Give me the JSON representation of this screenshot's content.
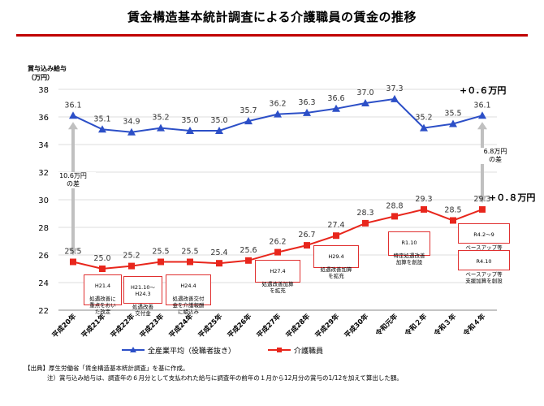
{
  "page": {
    "title": "賃金構造基本統計調査による介護職員の賃金の推移"
  },
  "chart_data": {
    "type": "line",
    "title": "賃金構造基本統計調査による介護職員の賃金の推移",
    "ylabel_line1": "賞与込み給与",
    "ylabel_line2": "（万円）",
    "xlabel": "",
    "ylim": [
      22,
      38
    ],
    "yticks": [
      22,
      24,
      26,
      28,
      30,
      32,
      34,
      36,
      38
    ],
    "grid": true,
    "categories": [
      "平成20年",
      "平成21年",
      "平成22年",
      "平成23年",
      "平成24年",
      "平成25年",
      "平成26年",
      "平成27年",
      "平成28年",
      "平成29年",
      "平成30年",
      "令和元年",
      "令和２年",
      "令和３年",
      "令和４年"
    ],
    "series": [
      {
        "name": "全産業平均（役職者抜き）",
        "color": "#2c4fc7",
        "marker": "triangle",
        "values": [
          36.1,
          35.1,
          34.9,
          35.2,
          35.0,
          35.0,
          35.7,
          36.2,
          36.3,
          36.6,
          37.0,
          37.3,
          35.2,
          35.5,
          36.1
        ],
        "labels": [
          "36.1",
          "35.1",
          "34.9",
          "35.2",
          "35.0",
          "35.0",
          "35.7",
          "36.2",
          "36.3",
          "36.6",
          "37.0",
          "37.3",
          "35.2",
          "35.5",
          "36.1"
        ]
      },
      {
        "name": "介護職員",
        "color": "#e8261c",
        "marker": "square",
        "values": [
          25.5,
          25.0,
          25.2,
          25.5,
          25.5,
          25.4,
          25.6,
          26.2,
          26.7,
          27.4,
          28.3,
          28.8,
          29.3,
          28.5,
          29.3
        ],
        "labels": [
          "25.5",
          "25.0",
          "25.2",
          "25.5",
          "25.5",
          "25.4",
          "25.6",
          "26.2",
          "26.7",
          "27.4",
          "28.3",
          "28.8",
          "29.3",
          "28.5",
          "29.3"
        ]
      }
    ],
    "gaps": [
      {
        "text_line1": "10.6万円",
        "text_line2": "の差"
      },
      {
        "text_line1": "6.8万円",
        "text_line2": "の差"
      }
    ],
    "deltas": {
      "all_industry": "+０.６万円",
      "care": "+０.８万円"
    },
    "annotations": [
      {
        "title": "H21.4",
        "body": "処遇改善に\n重点をおい\nた改定"
      },
      {
        "title": "H21.10～\nH24.3",
        "body": "処遇改善\n交付金"
      },
      {
        "title": "H24.4",
        "body": "処遇改善交付\n金を介護報酬\nに組込み"
      },
      {
        "title": "H27.4",
        "body": "処遇改善加算\nを拡充"
      },
      {
        "title": "H29.4",
        "body": "処遇改善加算\nを拡充"
      },
      {
        "title": "R1.10",
        "body": "特定処遇改善\n加算を創設"
      },
      {
        "title": "R4.2～9",
        "body": "ベースアップ等\n支援補助金"
      },
      {
        "title": "R4.10",
        "body": "ベースアップ等\n支援加算を創設"
      }
    ]
  },
  "notes": {
    "source": "【出典】厚生労働省「賃金構造基本統計調査」を基に作成。",
    "note": "注）賞与込み給与は、調査年の６月分として支払われた給与に調査年の前年の１月から12月分の賞与の1/12を加えて算出した額。"
  }
}
